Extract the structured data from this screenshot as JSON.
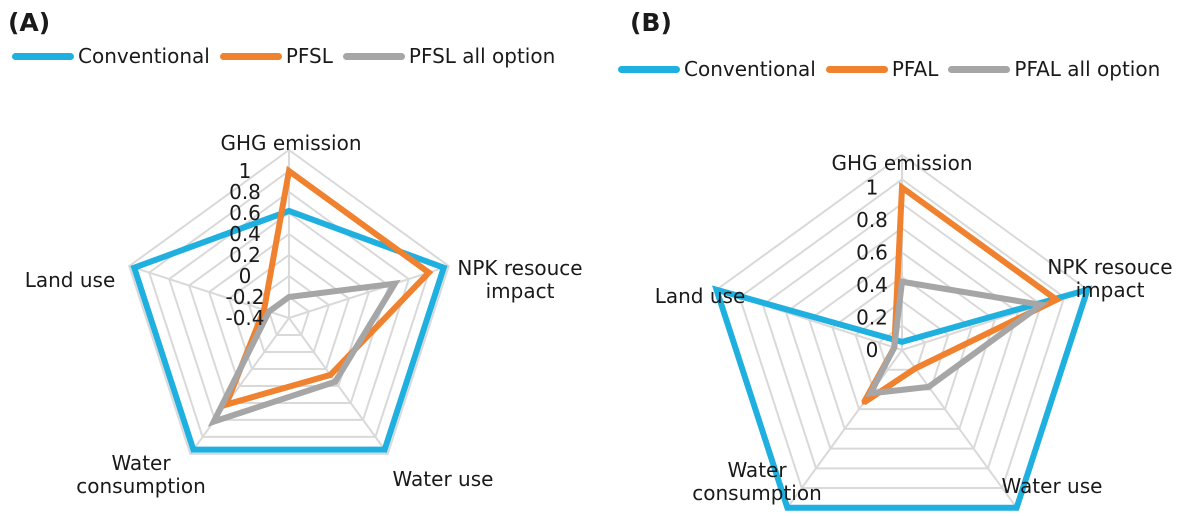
{
  "chart_data": [
    {
      "type": "radar",
      "panel_label": "(A)",
      "axes": [
        "GHG emission",
        "NPK resouce\nimpact",
        "Water use",
        "Water\nconsumption",
        "Land use"
      ],
      "tick_labels": [
        "-0.4",
        "-0.2",
        "0",
        "0.2",
        "0.4",
        "0.6",
        "0.8",
        "1"
      ],
      "range": [
        -0.4,
        1.2
      ],
      "series": [
        {
          "name": "Conventional",
          "color": "#1fb0e0",
          "values": [
            0.62,
            1.15,
            1.15,
            1.15,
            1.15
          ]
        },
        {
          "name": "PFSL",
          "color": "#f0812f",
          "values": [
            1.0,
            1.0,
            0.27,
            0.62,
            -0.15
          ]
        },
        {
          "name": "PFSL all option",
          "color": "#a6a6a6",
          "values": [
            -0.2,
            0.66,
            0.35,
            0.82,
            -0.2
          ]
        }
      ],
      "legend_position": "top-left",
      "grid": true
    },
    {
      "type": "radar",
      "panel_label": "(B)",
      "axes": [
        "GHG emission",
        "NPK resouce\nimpact",
        "Water use",
        "Water\nconsumption",
        "Land use"
      ],
      "tick_labels": [
        "0",
        "0.2",
        "0.4",
        "0.6",
        "0.8",
        "1"
      ],
      "range": [
        0,
        1.2
      ],
      "series": [
        {
          "name": "Conventional",
          "color": "#1fb0e0",
          "values": [
            0.05,
            1.2,
            1.2,
            1.2,
            1.2
          ]
        },
        {
          "name": "PFAL",
          "color": "#f0812f",
          "values": [
            1.0,
            1.0,
            0.14,
            0.4,
            0.05
          ]
        },
        {
          "name": "PFAL all option",
          "color": "#a6a6a6",
          "values": [
            0.42,
            0.9,
            0.28,
            0.33,
            0.05
          ]
        }
      ],
      "legend_position": "top-left",
      "grid": true
    }
  ]
}
